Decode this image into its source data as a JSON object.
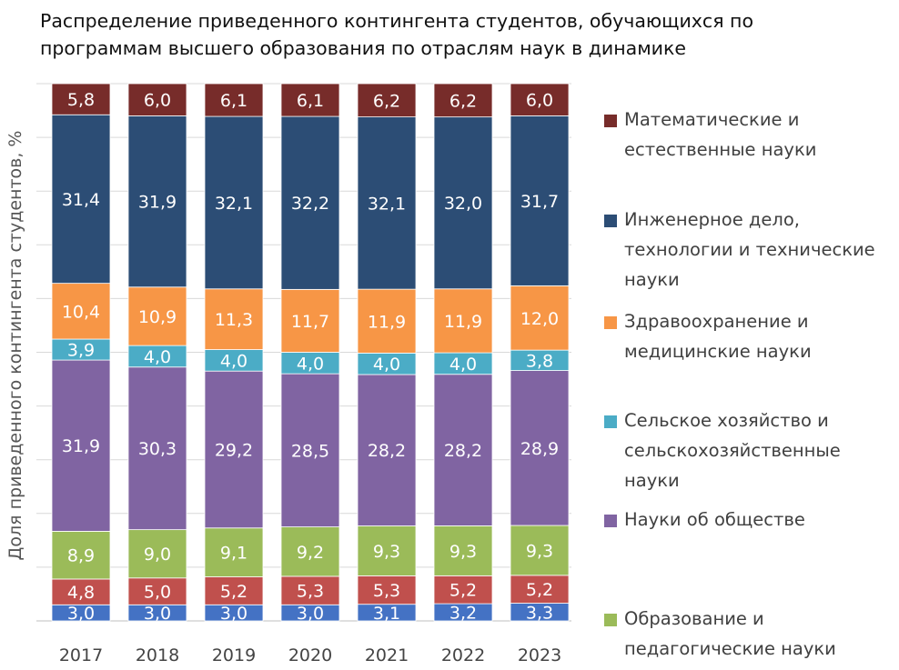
{
  "title": "Распределение приведенного контингента студентов, обучающихся по программам высшего образования по отраслям наук в динамике",
  "chart_data": {
    "type": "bar",
    "stacked": true,
    "ylabel": "Доля приведенного контингента студентов, %",
    "xlabel": "",
    "ylim": [
      0,
      100
    ],
    "grid": true,
    "legend_position": "right",
    "categories": [
      "2017",
      "2018",
      "2019",
      "2020",
      "2021",
      "2022",
      "2023"
    ],
    "series": [
      {
        "name": "",
        "color": "#4472c4",
        "values": [
          3.0,
          3.0,
          3.0,
          3.0,
          3.1,
          3.2,
          3.3
        ]
      },
      {
        "name": "",
        "color": "#c0504d",
        "values": [
          4.8,
          5.0,
          5.2,
          5.3,
          5.3,
          5.2,
          5.2
        ]
      },
      {
        "name": "Образование и педагогические науки",
        "color": "#9bbb59",
        "values": [
          8.9,
          9.0,
          9.1,
          9.2,
          9.3,
          9.3,
          9.3
        ]
      },
      {
        "name": "Науки об обществе",
        "color": "#8064a2",
        "values": [
          31.9,
          30.3,
          29.2,
          28.5,
          28.2,
          28.2,
          28.9
        ]
      },
      {
        "name": "Сельское хозяйство и сельскохозяйственные науки",
        "color": "#4bacc6",
        "values": [
          3.9,
          4.0,
          4.0,
          4.0,
          4.0,
          4.0,
          3.8
        ]
      },
      {
        "name": "Здравоохранение и медицинские науки",
        "color": "#f79646",
        "values": [
          10.4,
          10.9,
          11.3,
          11.7,
          11.9,
          11.9,
          12.0
        ]
      },
      {
        "name": "Инженерное дело, технологии и технические науки",
        "color": "#2c4d75",
        "values": [
          31.4,
          31.9,
          32.1,
          32.2,
          32.1,
          32.0,
          31.7
        ]
      },
      {
        "name": "Математические и естественные науки",
        "color": "#772c2a",
        "values": [
          5.8,
          6.0,
          6.1,
          6.1,
          6.2,
          6.2,
          6.0
        ]
      }
    ]
  },
  "legend": [
    {
      "color": "#772c2a",
      "lines": [
        "Математические и",
        "естественные науки"
      ]
    },
    {
      "color": "#2c4d75",
      "lines": [
        "Инженерное дело,",
        "технологии и технические",
        "науки"
      ]
    },
    {
      "color": "#f79646",
      "lines": [
        "Здравоохранение и",
        "медицинские науки"
      ]
    },
    {
      "color": "#4bacc6",
      "lines": [
        "Сельское хозяйство и",
        "сельскохозяйственные",
        "науки"
      ]
    },
    {
      "color": "#8064a2",
      "lines": [
        "Науки об обществе"
      ]
    },
    {
      "color": "#9bbb59",
      "lines": [
        "Образование и",
        "педагогические науки"
      ]
    }
  ]
}
